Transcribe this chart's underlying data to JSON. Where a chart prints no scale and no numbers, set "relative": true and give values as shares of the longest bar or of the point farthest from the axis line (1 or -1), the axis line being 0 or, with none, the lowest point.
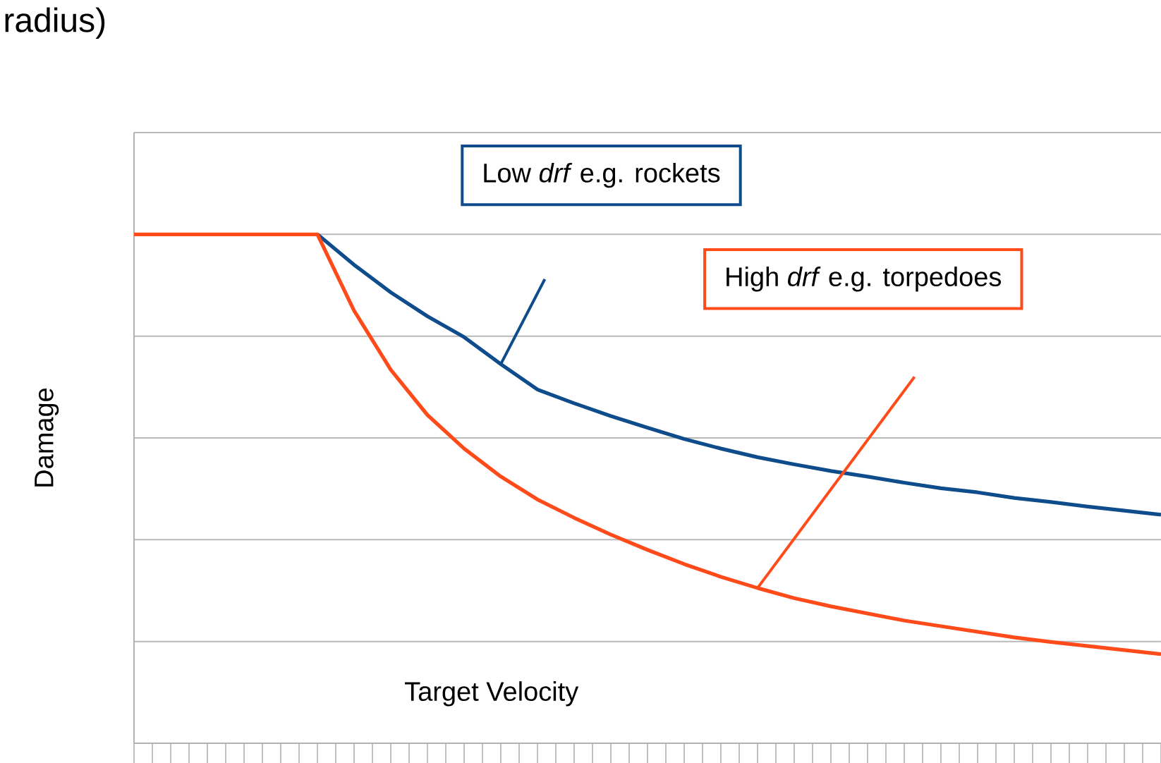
{
  "chart_data": {
    "type": "line",
    "title": "radius)",
    "xlabel": "Target Velocity",
    "ylabel": "Damage",
    "relative": true,
    "grid": "y",
    "marker": "none",
    "line_style": "solid",
    "categories": [
      null,
      null,
      null,
      null,
      null,
      null,
      null,
      null,
      null,
      null,
      null,
      null,
      null,
      null,
      null,
      null,
      null,
      null,
      null,
      null,
      null,
      null,
      null,
      null,
      null,
      null,
      null,
      null,
      null
    ],
    "series": [
      {
        "color": "#0f4c8c",
        "values": [
          null,
          null,
          null,
          null,
          null,
          1,
          0.94,
          0.886,
          0.839,
          0.798,
          0.745,
          0.695,
          0.668,
          0.643,
          0.62,
          0.598,
          0.579,
          0.562,
          0.548,
          0.535,
          0.524,
          0.512,
          0.501,
          0.493,
          0.482,
          0.474,
          0.465,
          0.457,
          0.449
        ]
      },
      {
        "color": "#ff4a1a",
        "values": [
          1,
          1,
          1,
          1,
          1,
          1,
          0.85,
          0.734,
          0.645,
          0.579,
          0.524,
          0.479,
          0.443,
          0.41,
          0.38,
          0.352,
          0.327,
          0.305,
          0.285,
          0.269,
          0.255,
          0.241,
          0.23,
          0.219,
          0.208,
          0.199,
          0.191,
          0.183,
          0.175
        ]
      }
    ],
    "annotations": [
      "Low *drf* e.g. rockets",
      "High *drf* e.g. torpedoes"
    ]
  }
}
